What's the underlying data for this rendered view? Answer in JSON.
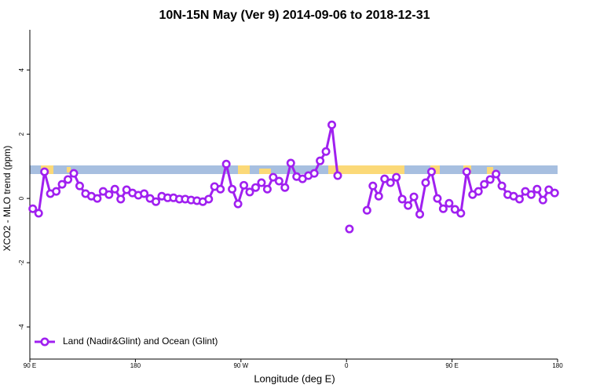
{
  "chart_data": {
    "type": "line",
    "title": "10N-15N May (Ver 9)   2014-09-06 to 2018-12-31",
    "x_label": "Longitude (deg E)",
    "y_label": "XCO2 - MLO trend (ppm)",
    "xlim": [
      90,
      540
    ],
    "xticks": [
      {
        "value": 90,
        "label": "90 E"
      },
      {
        "value": 180,
        "label": "180"
      },
      {
        "value": 270,
        "label": "90 W"
      },
      {
        "value": 360,
        "label": "0"
      },
      {
        "value": 450,
        "label": "90 E"
      },
      {
        "value": 540,
        "label": "180"
      }
    ],
    "ylim": [
      -5,
      5.25
    ],
    "yticks": [
      -4,
      -2,
      0,
      2,
      4
    ],
    "legend": "bottom-left",
    "x": [
      92.5,
      97.5,
      102.5,
      107.5,
      112.5,
      117.5,
      122.5,
      127.5,
      132.5,
      137.5,
      142.5,
      147.5,
      152.5,
      157.5,
      162.5,
      167.5,
      172.5,
      177.5,
      182.5,
      187.5,
      192.5,
      197.5,
      202.5,
      207.5,
      212.5,
      217.5,
      222.5,
      227.5,
      232.5,
      237.5,
      242.5,
      247.5,
      252.5,
      257.5,
      262.5,
      267.5,
      272.5,
      277.5,
      282.5,
      287.5,
      292.5,
      297.5,
      302.5,
      307.5,
      312.5,
      317.5,
      322.5,
      327.5,
      332.5,
      337.5,
      342.5,
      347.5,
      352.5,
      357.5,
      362.5,
      367.5,
      377.5,
      382.5,
      387.5,
      392.5,
      397.5,
      402.5,
      407.5,
      412.5,
      417.5,
      422.5,
      427.5,
      432.5,
      437.5,
      442.5,
      447.5,
      452.5,
      457.5,
      462.5,
      467.5,
      472.5,
      477.5,
      482.5,
      487.5,
      492.5,
      497.5,
      502.5,
      507.5,
      512.5,
      517.5,
      522.5,
      527.5,
      532.5,
      537.5
    ],
    "series": [
      {
        "name": "Land (Nadir&Glint) and Ocean (Glint)",
        "color": "#a020f0",
        "values": [
          -0.32,
          -0.46,
          0.83,
          0.15,
          0.22,
          0.44,
          0.59,
          0.78,
          0.39,
          0.15,
          0.07,
          0,
          0.22,
          0.12,
          0.29,
          -0.02,
          0.27,
          0.17,
          0.1,
          0.15,
          0,
          -0.1,
          0.07,
          0.02,
          0.02,
          -0.02,
          -0.02,
          -0.05,
          -0.07,
          -0.1,
          -0.02,
          0.37,
          0.29,
          1.07,
          0.29,
          -0.17,
          0.41,
          0.2,
          0.34,
          0.49,
          0.29,
          0.66,
          0.54,
          0.34,
          1.1,
          0.68,
          0.61,
          0.71,
          0.78,
          1.17,
          1.46,
          2.29,
          0.71,
          null,
          -0.95,
          null,
          -0.37,
          0.39,
          0.07,
          0.61,
          0.49,
          0.66,
          -0.02,
          -0.22,
          0.05,
          -0.49,
          0.49,
          0.83,
          0,
          -0.32,
          -0.15,
          -0.34,
          -0.46,
          0.83,
          0.12,
          0.22,
          0.44,
          0.59,
          0.76,
          0.39,
          0.12,
          0.07,
          -0.02,
          0.22,
          0.12,
          0.29,
          -0.05,
          0.27,
          0.17
        ]
      }
    ]
  }
}
